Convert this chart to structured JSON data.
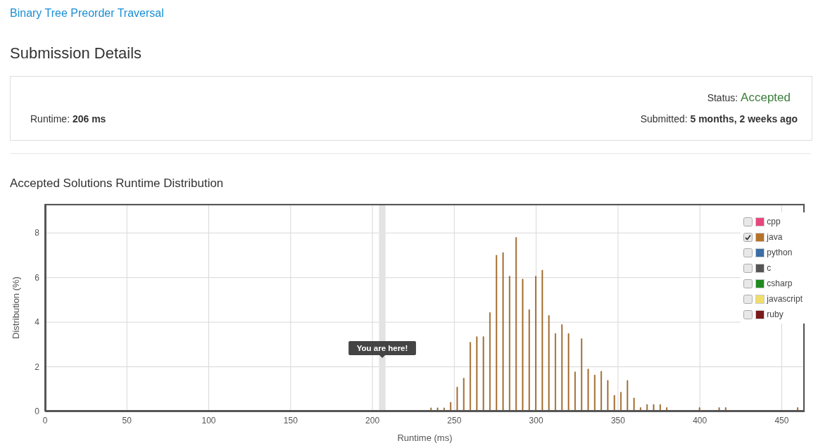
{
  "chart_data": {
    "type": "bar",
    "title": "Accepted Solutions Runtime Distribution",
    "xlabel": "Runtime (ms)",
    "ylabel": "Distribution (%)",
    "annotations": [
      "Binary Tree Preorder Traversal",
      "Submission Details",
      "Status: Accepted",
      "Runtime: 206 ms",
      "Submitted: 5 months, 2 weeks ago"
    ],
    "x": [
      237,
      241,
      245,
      249,
      253,
      257,
      261,
      265,
      269,
      273,
      277,
      281,
      285,
      289,
      293,
      297,
      301,
      305,
      309,
      313,
      317,
      321,
      325,
      329,
      333,
      337,
      341,
      345,
      349,
      353,
      357,
      361,
      365,
      369,
      373,
      377,
      381,
      401,
      413,
      417,
      461
    ],
    "series": [
      {
        "name": "cpp",
        "color": "#e8467c",
        "values": [
          null,
          null,
          null,
          null,
          null,
          null,
          null,
          null,
          null,
          null,
          null,
          null,
          null,
          null,
          null,
          null,
          null,
          null,
          null,
          null,
          null,
          null,
          null,
          null,
          null,
          null,
          null,
          null,
          null,
          null,
          null,
          null,
          null,
          null,
          null,
          null,
          null,
          null,
          null,
          null,
          null
        ]
      },
      {
        "name": "java",
        "color": "#b5722a",
        "values": [
          0.16,
          0.16,
          0.16,
          0.41,
          1.09,
          1.49,
          3.1,
          3.35,
          3.35,
          4.43,
          7.0,
          7.12,
          6.06,
          7.8,
          5.93,
          4.56,
          6.06,
          6.33,
          4.3,
          3.49,
          3.89,
          3.49,
          1.77,
          3.26,
          1.9,
          1.63,
          1.8,
          1.39,
          0.72,
          0.86,
          1.39,
          0.6,
          0.17,
          0.31,
          0.31,
          0.31,
          0.17,
          0.17,
          0.17,
          0.17,
          0.17
        ]
      },
      {
        "name": "python",
        "color": "#3a6ea5",
        "values": [
          null,
          null,
          null,
          null,
          null,
          null,
          null,
          null,
          null,
          null,
          null,
          null,
          null,
          null,
          null,
          null,
          null,
          null,
          null,
          null,
          null,
          null,
          null,
          null,
          null,
          null,
          null,
          null,
          null,
          null,
          null,
          null,
          null,
          null,
          null,
          null,
          null,
          null,
          null,
          null,
          null
        ]
      },
      {
        "name": "c",
        "color": "#555555",
        "values": [
          null,
          null,
          null,
          null,
          null,
          null,
          null,
          null,
          null,
          null,
          null,
          null,
          null,
          null,
          null,
          null,
          null,
          null,
          null,
          null,
          null,
          null,
          null,
          null,
          null,
          null,
          null,
          null,
          null,
          null,
          null,
          null,
          null,
          null,
          null,
          null,
          null,
          null,
          null,
          null,
          null
        ]
      },
      {
        "name": "csharp",
        "color": "#1f8a1f",
        "values": [
          null,
          null,
          null,
          null,
          null,
          null,
          null,
          null,
          null,
          null,
          null,
          null,
          null,
          null,
          null,
          null,
          null,
          null,
          null,
          null,
          null,
          null,
          null,
          null,
          null,
          null,
          null,
          null,
          null,
          null,
          null,
          null,
          null,
          null,
          null,
          null,
          null,
          null,
          null,
          null,
          null
        ]
      },
      {
        "name": "javascript",
        "color": "#f0de6a",
        "values": [
          null,
          null,
          null,
          null,
          null,
          null,
          null,
          null,
          null,
          null,
          null,
          null,
          null,
          null,
          null,
          null,
          null,
          null,
          null,
          null,
          null,
          null,
          null,
          null,
          null,
          null,
          null,
          null,
          null,
          null,
          null,
          null,
          null,
          null,
          null,
          null,
          null,
          null,
          null,
          null,
          null
        ]
      },
      {
        "name": "ruby",
        "color": "#7a1a1a",
        "values": [
          null,
          null,
          null,
          null,
          null,
          null,
          null,
          null,
          null,
          null,
          null,
          null,
          null,
          null,
          null,
          null,
          null,
          null,
          null,
          null,
          null,
          null,
          null,
          null,
          null,
          null,
          null,
          null,
          null,
          null,
          null,
          null,
          null,
          null,
          null,
          null,
          null,
          null,
          null,
          null,
          null
        ]
      }
    ],
    "bands": [
      {
        "axis": "x",
        "from": 204,
        "to": 208,
        "label": "You are here!",
        "color": "#e3e3e3"
      }
    ],
    "xlim": [
      0,
      464
    ],
    "ylim": [
      0,
      9.3
    ],
    "xticks": [
      0,
      50,
      100,
      150,
      200,
      250,
      300,
      350,
      400,
      450
    ],
    "yticks": [
      0,
      2,
      4,
      6,
      8
    ],
    "grid": true,
    "legend": "top right"
  }
}
